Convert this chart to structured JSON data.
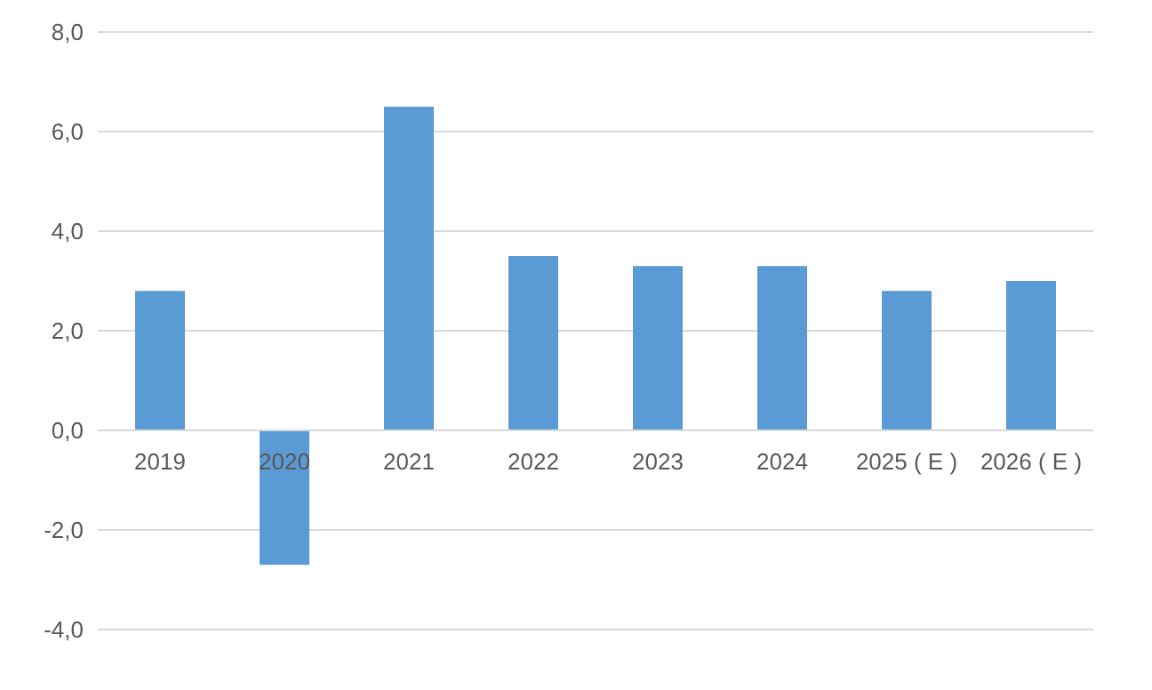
{
  "chart_data": {
    "type": "bar",
    "categories": [
      "2019",
      "2020",
      "2021",
      "2022",
      "2023",
      "2024",
      "2025 ( E )",
      "2026 ( E )"
    ],
    "values": [
      2.8,
      -2.7,
      6.5,
      3.5,
      3.3,
      3.3,
      2.8,
      3.0
    ],
    "color": "#5b9bd5",
    "ylim": [
      -4,
      8
    ],
    "yticks": [
      {
        "value": -4,
        "label": "-4,0"
      },
      {
        "value": -2,
        "label": "-2,0"
      },
      {
        "value": 0,
        "label": "0,0"
      },
      {
        "value": 2,
        "label": "2,0"
      },
      {
        "value": 4,
        "label": "4,0"
      },
      {
        "value": 6,
        "label": "6,0"
      },
      {
        "value": 8,
        "label": "8,0"
      }
    ],
    "grid": true
  }
}
